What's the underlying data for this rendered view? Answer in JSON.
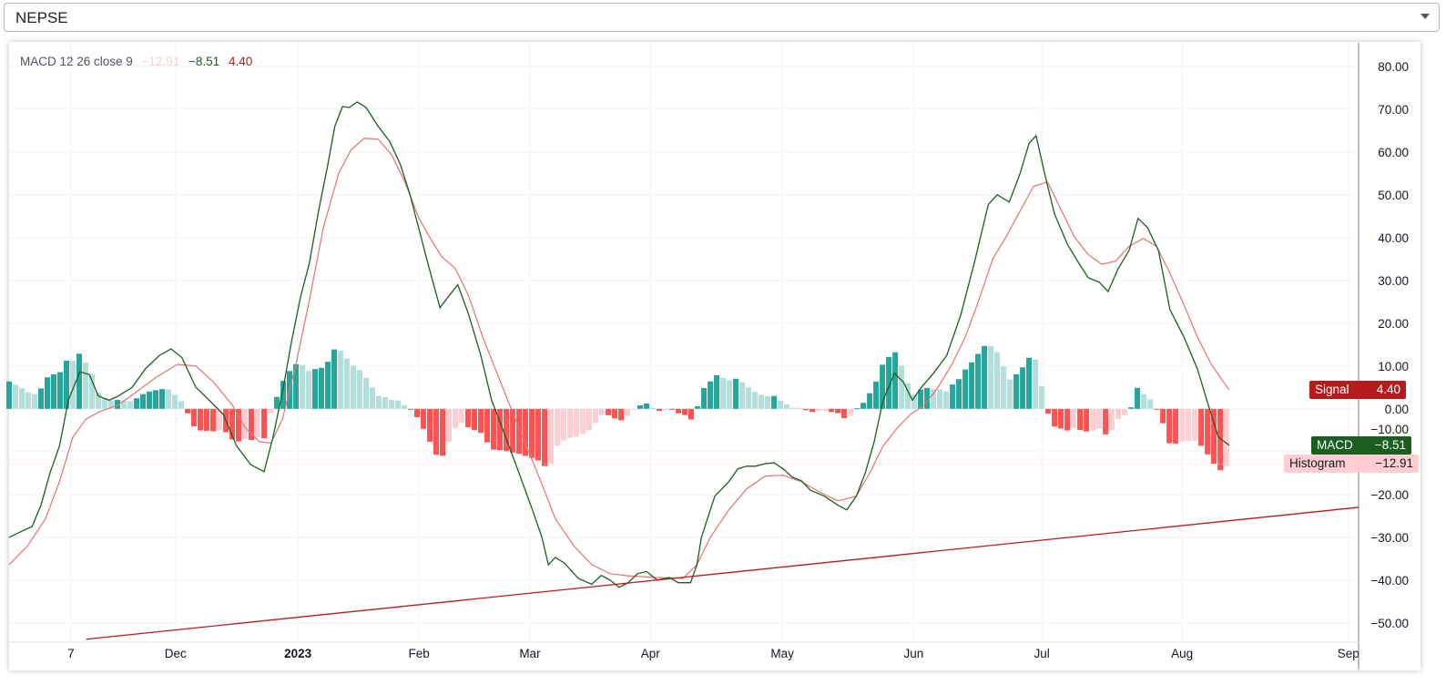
{
  "selector": {
    "value": "NEPSE"
  },
  "legend": {
    "title": "MACD 12 26 close 9",
    "histogram": "−12.91",
    "macd": "−8.51",
    "signal": "4.40"
  },
  "badges": {
    "signal": {
      "label": "Signal",
      "value": "4.40"
    },
    "macd": {
      "label": "MACD",
      "value": "−8.51"
    },
    "histogram": {
      "label": "Histogram",
      "value": "−12.91"
    }
  },
  "colors": {
    "macd": "#1b5e20",
    "signal": "#e57373",
    "trendline": "#b71c1c",
    "hist_up_strong": "#26a69a",
    "hist_up_weak": "#b2dfdb",
    "hist_down_strong": "#ff5252",
    "hist_down_weak": "#ffcdd2"
  },
  "chart_data": {
    "type": "line",
    "title": "MACD 12 26 close 9",
    "x_unit": "bar index",
    "xlim": [
      0,
      211.7
    ],
    "ylim": [
      -54.5,
      85.5
    ],
    "grid": true,
    "y_ticks": [
      80,
      70,
      60,
      50,
      40,
      30,
      20,
      10,
      0,
      -10,
      -20,
      -30,
      -40,
      -50
    ],
    "y_tick_labels": [
      "80.00",
      "70.00",
      "60.00",
      "50.00",
      "40.00",
      "30.00",
      "20.00",
      "10.00",
      "0.00",
      "−10.00",
      "−20.00",
      "−30.00",
      "−40.00",
      "−50.00"
    ],
    "x_ticks": [
      {
        "label": "7",
        "bar": 9.7,
        "bold": false
      },
      {
        "label": "Dec",
        "bar": 26.1,
        "bold": false
      },
      {
        "label": "2023",
        "bar": 45.3,
        "bold": true
      },
      {
        "label": "Feb",
        "bar": 64.3,
        "bold": false
      },
      {
        "label": "Mar",
        "bar": 81.7,
        "bold": false
      },
      {
        "label": "Apr",
        "bar": 100.6,
        "bold": false
      },
      {
        "label": "May",
        "bar": 121.3,
        "bold": false
      },
      {
        "label": "Jun",
        "bar": 141.9,
        "bold": false
      },
      {
        "label": "Jul",
        "bar": 162,
        "bold": false
      },
      {
        "label": "Aug",
        "bar": 184,
        "bold": false
      },
      {
        "label": "Sep",
        "bar": 210.1,
        "bold": false
      }
    ],
    "last_bar": 191,
    "series": [
      {
        "name": "MACD",
        "points": [
          [
            0,
            -30
          ],
          [
            2.1,
            -28.5
          ],
          [
            3.6,
            -27.5
          ],
          [
            5,
            -22.5
          ],
          [
            6.4,
            -15
          ],
          [
            7.9,
            -8.7
          ],
          [
            9.3,
            2
          ],
          [
            11.1,
            8.7
          ],
          [
            12.6,
            8
          ],
          [
            14,
            3
          ],
          [
            15.7,
            2
          ],
          [
            17.1,
            3
          ],
          [
            19.3,
            5
          ],
          [
            21.4,
            9.4
          ],
          [
            23.6,
            12.5
          ],
          [
            25.4,
            14
          ],
          [
            27.1,
            12
          ],
          [
            29.3,
            5
          ],
          [
            31.4,
            2
          ],
          [
            33.6,
            -1.3
          ],
          [
            35.7,
            -8.7
          ],
          [
            37.9,
            -13
          ],
          [
            40,
            -14.7
          ],
          [
            41.4,
            -6.6
          ],
          [
            42.9,
            4
          ],
          [
            44.3,
            15.7
          ],
          [
            45.7,
            26
          ],
          [
            47.1,
            34
          ],
          [
            48.6,
            46.6
          ],
          [
            50,
            57
          ],
          [
            51.1,
            66
          ],
          [
            52.3,
            70.6
          ],
          [
            53.4,
            70.4
          ],
          [
            54.6,
            71.7
          ],
          [
            56,
            70.4
          ],
          [
            57.9,
            66
          ],
          [
            59.7,
            62.5
          ],
          [
            61.4,
            57
          ],
          [
            62.9,
            50
          ],
          [
            64.3,
            42
          ],
          [
            65.7,
            34
          ],
          [
            67.6,
            23.6
          ],
          [
            69,
            26.4
          ],
          [
            70.4,
            29
          ],
          [
            72.1,
            22
          ],
          [
            74,
            12.5
          ],
          [
            75.7,
            2
          ],
          [
            77.9,
            -6.6
          ],
          [
            80,
            -15
          ],
          [
            82.1,
            -23.6
          ],
          [
            83.6,
            -30
          ],
          [
            84.6,
            -36.4
          ],
          [
            85.7,
            -34.7
          ],
          [
            87.1,
            -36
          ],
          [
            89.3,
            -39.6
          ],
          [
            91.4,
            -41
          ],
          [
            92.9,
            -38.9
          ],
          [
            94.3,
            -40
          ],
          [
            95.7,
            -41.7
          ],
          [
            97.1,
            -40.6
          ],
          [
            98.6,
            -38.5
          ],
          [
            100,
            -38
          ],
          [
            101.7,
            -40
          ],
          [
            103.6,
            -39.4
          ],
          [
            105,
            -40.6
          ],
          [
            106.9,
            -40.6
          ],
          [
            107.9,
            -36.4
          ],
          [
            108.6,
            -30
          ],
          [
            110.7,
            -20.4
          ],
          [
            112.9,
            -17
          ],
          [
            114.3,
            -14
          ],
          [
            115.7,
            -13.4
          ],
          [
            117.1,
            -13.4
          ],
          [
            118.6,
            -12.8
          ],
          [
            120,
            -12.6
          ],
          [
            121.4,
            -14
          ],
          [
            122.9,
            -16
          ],
          [
            124.3,
            -16.8
          ],
          [
            125.7,
            -19
          ],
          [
            127.9,
            -20.4
          ],
          [
            130,
            -22.5
          ],
          [
            131.4,
            -23.6
          ],
          [
            132.9,
            -20.4
          ],
          [
            134.3,
            -15
          ],
          [
            135.7,
            -7.7
          ],
          [
            137.1,
            2
          ],
          [
            138.9,
            8.3
          ],
          [
            140.3,
            6.2
          ],
          [
            141.7,
            2
          ],
          [
            143.1,
            5
          ],
          [
            145,
            8.3
          ],
          [
            147.1,
            12.5
          ],
          [
            149.3,
            22
          ],
          [
            151.4,
            34
          ],
          [
            153.6,
            47.7
          ],
          [
            155,
            50
          ],
          [
            156.9,
            48.3
          ],
          [
            158.6,
            55
          ],
          [
            160,
            62
          ],
          [
            161.1,
            63.8
          ],
          [
            162.6,
            54
          ],
          [
            164,
            45.5
          ],
          [
            166,
            38.5
          ],
          [
            167.9,
            33.8
          ],
          [
            169.3,
            30.6
          ],
          [
            171,
            29.6
          ],
          [
            172.4,
            27.4
          ],
          [
            174,
            32.8
          ],
          [
            175.7,
            37
          ],
          [
            177.1,
            44.5
          ],
          [
            178.6,
            42.3
          ],
          [
            180.3,
            37
          ],
          [
            182.1,
            23.2
          ],
          [
            184.3,
            16.8
          ],
          [
            186.4,
            9.4
          ],
          [
            187.9,
            2
          ],
          [
            189.7,
            -6.6
          ],
          [
            191.4,
            -8.51
          ]
        ]
      },
      {
        "name": "Signal",
        "points": [
          [
            0,
            -36.4
          ],
          [
            2.9,
            -32
          ],
          [
            5.7,
            -25.7
          ],
          [
            7.9,
            -17
          ],
          [
            10,
            -6.6
          ],
          [
            12.1,
            -2.3
          ],
          [
            14.3,
            -0.6
          ],
          [
            17.1,
            0.9
          ],
          [
            20,
            4
          ],
          [
            22.9,
            7.2
          ],
          [
            26.4,
            10.4
          ],
          [
            29.3,
            10
          ],
          [
            32.1,
            6.2
          ],
          [
            35,
            0.9
          ],
          [
            37.1,
            -4.5
          ],
          [
            39.3,
            -7.7
          ],
          [
            41.1,
            -8
          ],
          [
            42.9,
            -2.3
          ],
          [
            45,
            10.4
          ],
          [
            47.1,
            25.3
          ],
          [
            49.3,
            42.3
          ],
          [
            51.7,
            55
          ],
          [
            53.6,
            60.4
          ],
          [
            55.7,
            63.2
          ],
          [
            57.9,
            63
          ],
          [
            60,
            59.4
          ],
          [
            62.1,
            53
          ],
          [
            64.3,
            44.5
          ],
          [
            66.4,
            39
          ],
          [
            67.9,
            35.5
          ],
          [
            70,
            32.8
          ],
          [
            72.1,
            26.4
          ],
          [
            74.3,
            16.8
          ],
          [
            77.1,
            6.2
          ],
          [
            80,
            -4.5
          ],
          [
            82.9,
            -15
          ],
          [
            85.7,
            -25.7
          ],
          [
            88.6,
            -32
          ],
          [
            91.4,
            -36.4
          ],
          [
            94.3,
            -38.5
          ],
          [
            97.1,
            -39
          ],
          [
            101.4,
            -39.4
          ],
          [
            105.7,
            -39.6
          ],
          [
            107.9,
            -36.4
          ],
          [
            110,
            -30
          ],
          [
            112.9,
            -23.6
          ],
          [
            115.7,
            -18.7
          ],
          [
            118.6,
            -15.7
          ],
          [
            121.4,
            -15.5
          ],
          [
            124.3,
            -17
          ],
          [
            127.1,
            -19.4
          ],
          [
            130,
            -21.5
          ],
          [
            132.9,
            -20.4
          ],
          [
            135,
            -15
          ],
          [
            137.1,
            -8.7
          ],
          [
            139.3,
            -4.5
          ],
          [
            141.4,
            -1.3
          ],
          [
            143.6,
            0.9
          ],
          [
            145.7,
            5
          ],
          [
            147.9,
            10.4
          ],
          [
            150,
            16.8
          ],
          [
            152.1,
            25.3
          ],
          [
            154.3,
            35
          ],
          [
            156.4,
            40.2
          ],
          [
            158.6,
            46.2
          ],
          [
            160.7,
            52
          ],
          [
            162.9,
            53
          ],
          [
            165,
            46.6
          ],
          [
            167.1,
            40.2
          ],
          [
            169.3,
            36
          ],
          [
            171.4,
            33.8
          ],
          [
            173.6,
            34.5
          ],
          [
            175.7,
            38
          ],
          [
            177.9,
            39.8
          ],
          [
            180,
            38
          ],
          [
            182.1,
            31.7
          ],
          [
            184.3,
            24.3
          ],
          [
            186.4,
            16.8
          ],
          [
            188.6,
            10.4
          ],
          [
            191.4,
            4.4
          ]
        ]
      },
      {
        "name": "Histogram",
        "derived": "MACD - Signal",
        "last_value": -12.91
      }
    ],
    "trendline": [
      [
        12.1,
        -53.8
      ],
      [
        211.7,
        -23
      ]
    ]
  }
}
